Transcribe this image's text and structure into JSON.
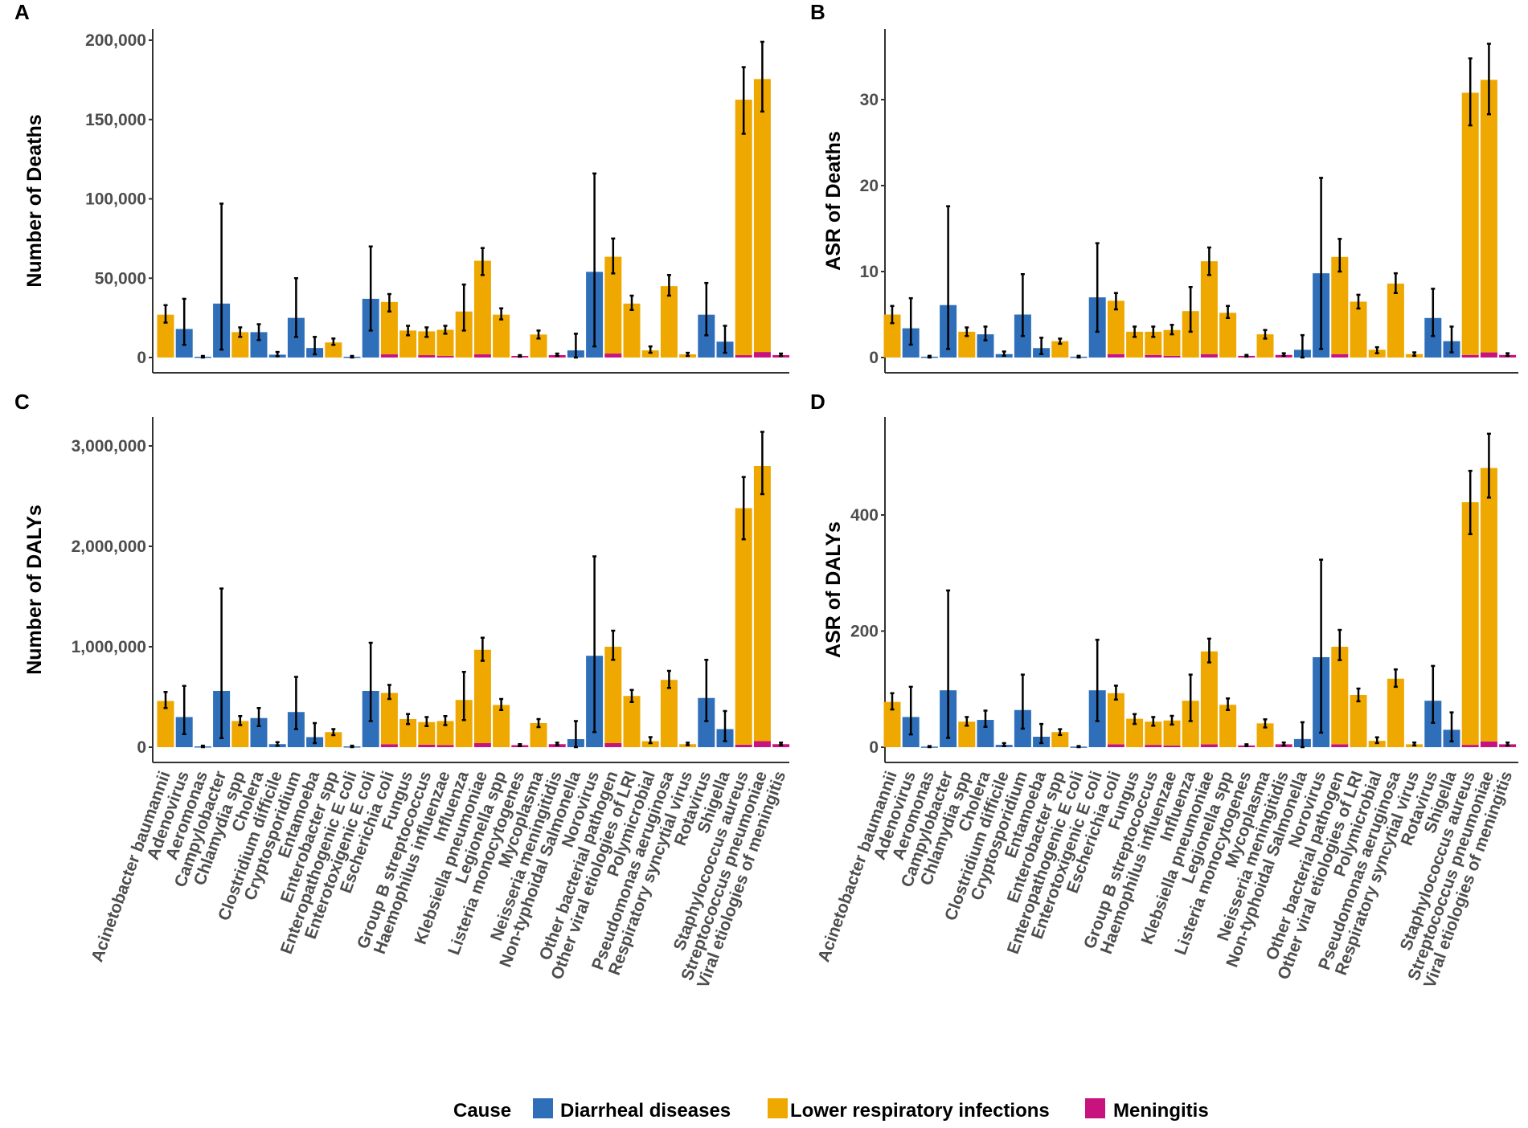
{
  "chart_data": {
    "type": "bar",
    "stacked": true,
    "colors": {
      "Diarrheal diseases": "#2f6fba",
      "Lower respiratory infections": "#eea800",
      "Meningitis": "#c8137f"
    },
    "legend": {
      "title": "Cause",
      "placement": "bottom",
      "entries": [
        "Diarrheal diseases",
        "Lower respiratory infections",
        "Meningitis"
      ]
    },
    "categories": [
      "Acinetobacter baumannii",
      "Adenovirus",
      "Aeromonas",
      "Campylobacter",
      "Chlamydia spp",
      "Cholera",
      "Clostridium difficile",
      "Cryptosporidium",
      "Entamoeba",
      "Enterobacter spp",
      "Enteropathogenic E coli",
      "Enterotoxigenic E coli",
      "Escherichia coli",
      "Fungus",
      "Group B streptococcus",
      "Haemophilus influenzae",
      "Influenza",
      "Klebsiella pneumoniae",
      "Legionella spp",
      "Listeria monocytogenes",
      "Mycoplasma",
      "Neisseria meningitidis",
      "Non-typhoidal Salmonella",
      "Norovirus",
      "Other bacterial pathogen",
      "Other viral etiologies of LRI",
      "Polymicrobial",
      "Pseudomonas aeruginosa",
      "Respiratory syncytial virus",
      "Rotavirus",
      "Shigella",
      "Staphylococcus aureus",
      "Streptococcus pneumoniae",
      "Viral etiologies of meningitis"
    ],
    "panels": [
      {
        "panel": "A",
        "ylabel": "Number of Deaths",
        "ylim": [
          0,
          205000
        ],
        "yticks": [
          0,
          50000,
          100000,
          150000,
          200000
        ],
        "ytick_labels": [
          "0",
          "50,000",
          "100,000",
          "150,000",
          "200,000"
        ],
        "series": [
          {
            "name": "Diarrheal diseases",
            "values": [
              0,
              18000,
              500,
              34000,
              0,
              16000,
              1800,
              25000,
              6000,
              0,
              500,
              37000,
              0,
              0,
              0,
              0,
              0,
              0,
              0,
              0,
              0,
              0,
              4500,
              54000,
              0,
              0,
              0,
              0,
              0,
              27000,
              10000,
              0,
              0,
              0
            ]
          },
          {
            "name": "Lower respiratory infections",
            "values": [
              27000,
              0,
              0,
              0,
              16000,
              0,
              0,
              0,
              0,
              9500,
              0,
              0,
              33000,
              17000,
              15000,
              16500,
              29000,
              59000,
              27000,
              0,
              14500,
              0,
              0,
              0,
              61000,
              34000,
              4500,
              45000,
              2000,
              0,
              0,
              161000,
              172000,
              0
            ]
          },
          {
            "name": "Meningitis",
            "values": [
              0,
              0,
              0,
              0,
              0,
              0,
              0,
              0,
              0,
              0,
              0,
              0,
              2000,
              0,
              1500,
              1000,
              0,
              2000,
              0,
              1000,
              0,
              1500,
              0,
              0,
              2500,
              0,
              0,
              0,
              0,
              0,
              0,
              1500,
              3500,
              1500
            ]
          }
        ],
        "ci_lower": [
          22000,
          8000,
          0,
          5000,
          13000,
          11000,
          800,
          13000,
          2000,
          8000,
          0,
          17000,
          29000,
          14000,
          13000,
          15000,
          17000,
          52000,
          24000,
          500,
          12000,
          1000,
          0,
          7000,
          53000,
          30000,
          3000,
          39000,
          1000,
          14000,
          3000,
          141000,
          155000,
          1000
        ],
        "ci_upper": [
          33000,
          37000,
          1000,
          97000,
          19000,
          21000,
          3500,
          50000,
          13000,
          12000,
          1000,
          70000,
          40000,
          20000,
          19000,
          20000,
          46000,
          69000,
          31000,
          1500,
          17000,
          2500,
          15000,
          116000,
          75000,
          39000,
          7000,
          52000,
          3000,
          47000,
          20000,
          183000,
          199000,
          2500
        ]
      },
      {
        "panel": "B",
        "ylabel": "ASR of Deaths",
        "ylim": [
          0,
          38
        ],
        "yticks": [
          0,
          10,
          20,
          30
        ],
        "ytick_labels": [
          "0",
          "10",
          "20",
          "30"
        ],
        "series": [
          {
            "name": "Diarrheal diseases",
            "values": [
              0,
              3.4,
              0.1,
              6.1,
              0,
              2.7,
              0.4,
              5,
              1.1,
              0,
              0.1,
              7,
              0,
              0,
              0,
              0,
              0,
              0,
              0,
              0,
              0,
              0,
              0.9,
              9.8,
              0,
              0,
              0,
              0,
              0,
              4.6,
              1.9,
              0,
              0,
              0
            ]
          },
          {
            "name": "Lower respiratory infections",
            "values": [
              5,
              0,
              0,
              0,
              3,
              0,
              0,
              0,
              0,
              1.9,
              0,
              0,
              6.2,
              3,
              2.7,
              3,
              5.4,
              10.8,
              5.2,
              0,
              2.7,
              0,
              0,
              0,
              11.3,
              6.5,
              0.9,
              8.6,
              0.4,
              0,
              0,
              30.5,
              31.7,
              0
            ]
          },
          {
            "name": "Meningitis",
            "values": [
              0,
              0,
              0,
              0,
              0,
              0,
              0,
              0,
              0,
              0,
              0,
              0,
              0.4,
              0,
              0.3,
              0.2,
              0,
              0.4,
              0,
              0.2,
              0,
              0.3,
              0,
              0,
              0.4,
              0,
              0,
              0,
              0,
              0,
              0,
              0.3,
              0.6,
              0.3
            ]
          }
        ],
        "ci_lower": [
          4,
          1.5,
          0,
          1,
          2.5,
          2,
          0.2,
          2.5,
          0.4,
          1.6,
          0,
          3,
          5.6,
          2.4,
          2.4,
          2.7,
          3,
          9.6,
          4.6,
          0.1,
          2.2,
          0.2,
          0,
          1,
          10,
          5.7,
          0.5,
          7.5,
          0.2,
          2.5,
          0.6,
          27,
          28.3,
          0.2
        ],
        "ci_upper": [
          6,
          6.9,
          0.2,
          17.6,
          3.5,
          3.6,
          0.7,
          9.7,
          2.3,
          2.2,
          0.2,
          13.3,
          7.5,
          3.6,
          3.6,
          3.8,
          8.2,
          12.8,
          6,
          0.3,
          3.2,
          0.5,
          2.6,
          20.9,
          13.8,
          7.3,
          1.2,
          9.8,
          0.6,
          8,
          3.6,
          34.8,
          36.5,
          0.5
        ]
      },
      {
        "panel": "C",
        "ylabel": "Number of DALYs",
        "ylim": [
          0,
          3300000
        ],
        "yticks": [
          0,
          1000000,
          2000000,
          3000000
        ],
        "ytick_labels": [
          "0",
          "1,000,000",
          "2,000,000",
          "3,000,000"
        ],
        "series": [
          {
            "name": "Diarrheal diseases",
            "values": [
              0,
              300000,
              8000,
              560000,
              0,
              290000,
              30000,
              350000,
              100000,
              0,
              8000,
              560000,
              0,
              0,
              0,
              0,
              0,
              0,
              0,
              0,
              0,
              0,
              80000,
              910000,
              0,
              0,
              0,
              0,
              0,
              490000,
              180000,
              0,
              0,
              0
            ]
          },
          {
            "name": "Lower respiratory infections",
            "values": [
              460000,
              0,
              0,
              0,
              260000,
              0,
              0,
              0,
              0,
              150000,
              0,
              0,
              510000,
              280000,
              225000,
              240000,
              470000,
              930000,
              420000,
              0,
              240000,
              0,
              0,
              0,
              960000,
              510000,
              60000,
              670000,
              30000,
              0,
              0,
              2355000,
              2740000,
              0
            ]
          },
          {
            "name": "Meningitis",
            "values": [
              0,
              0,
              0,
              0,
              0,
              0,
              0,
              0,
              0,
              0,
              0,
              0,
              30000,
              0,
              25000,
              20000,
              0,
              40000,
              0,
              20000,
              0,
              30000,
              0,
              0,
              40000,
              0,
              0,
              0,
              0,
              0,
              0,
              25000,
              60000,
              30000
            ]
          }
        ],
        "ci_lower": [
          390000,
          130000,
          0,
          90000,
          220000,
          210000,
          15000,
          180000,
          40000,
          120000,
          0,
          260000,
          480000,
          230000,
          210000,
          220000,
          270000,
          860000,
          370000,
          10000,
          200000,
          20000,
          0,
          150000,
          870000,
          450000,
          40000,
          590000,
          20000,
          260000,
          60000,
          2070000,
          2520000,
          20000
        ],
        "ci_upper": [
          550000,
          610000,
          15000,
          1580000,
          310000,
          390000,
          50000,
          700000,
          240000,
          180000,
          15000,
          1040000,
          620000,
          330000,
          300000,
          310000,
          750000,
          1090000,
          480000,
          30000,
          280000,
          45000,
          260000,
          1900000,
          1160000,
          570000,
          100000,
          760000,
          45000,
          870000,
          360000,
          2690000,
          3140000,
          45000
        ]
      },
      {
        "panel": "D",
        "ylabel": "ASR of DALYs",
        "ylim": [
          0,
          560
        ],
        "yticks": [
          0,
          200,
          400
        ],
        "ytick_labels": [
          "0",
          "200",
          "400"
        ],
        "series": [
          {
            "name": "Diarrheal diseases",
            "values": [
              0,
              52,
              1,
              98,
              0,
              47,
              4,
              64,
              18,
              0,
              1,
              98,
              0,
              0,
              0,
              0,
              0,
              0,
              0,
              0,
              0,
              0,
              14,
              155,
              0,
              0,
              0,
              0,
              0,
              80,
              30,
              0,
              0,
              0
            ]
          },
          {
            "name": "Lower respiratory infections",
            "values": [
              78,
              0,
              0,
              0,
              44,
              0,
              0,
              0,
              0,
              26,
              0,
              0,
              88,
              49,
              40,
              43,
              80,
              160,
              73,
              0,
              41,
              0,
              0,
              0,
              168,
              90,
              11,
              118,
              5,
              0,
              0,
              418,
              471,
              0
            ]
          },
          {
            "name": "Meningitis",
            "values": [
              0,
              0,
              0,
              0,
              0,
              0,
              0,
              0,
              0,
              0,
              0,
              0,
              5,
              0,
              4,
              3,
              0,
              5,
              0,
              3,
              0,
              5,
              0,
              0,
              5,
              0,
              0,
              0,
              0,
              0,
              0,
              4,
              10,
              5
            ]
          }
        ],
        "ci_lower": [
          65,
          22,
          0,
          16,
          37,
          35,
          2,
          32,
          7,
          21,
          0,
          45,
          82,
          40,
          37,
          39,
          45,
          146,
          64,
          2,
          34,
          3,
          0,
          25,
          150,
          79,
          7,
          104,
          3,
          42,
          10,
          367,
          430,
          3
        ],
        "ci_upper": [
          93,
          104,
          2,
          270,
          52,
          63,
          7,
          125,
          40,
          31,
          2,
          185,
          106,
          57,
          52,
          54,
          125,
          187,
          84,
          5,
          48,
          8,
          43,
          323,
          202,
          101,
          17,
          134,
          8,
          140,
          60,
          476,
          540,
          8
        ]
      }
    ]
  }
}
